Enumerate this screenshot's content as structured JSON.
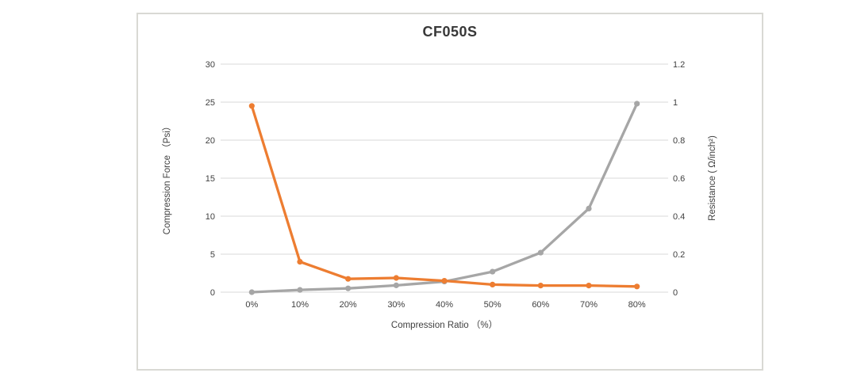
{
  "chart_data": {
    "type": "line",
    "title": "CF050S",
    "categories": [
      "0%",
      "10%",
      "20%",
      "30%",
      "40%",
      "50%",
      "60%",
      "70%",
      "80%"
    ],
    "x_axis": {
      "label": "Compression Ratio （%）"
    },
    "left_axis": {
      "label": "Compression Force （Psi）",
      "ticks": [
        "0",
        "5",
        "10",
        "15",
        "20",
        "25",
        "30"
      ],
      "range": [
        0,
        30
      ]
    },
    "right_axis": {
      "label": "Resistance ( Ω/inch²)",
      "ticks": [
        "0",
        "0.2",
        "0.4",
        "0.6",
        "0.8",
        "1",
        "1.2"
      ],
      "range": [
        0,
        1.2
      ]
    },
    "series": [
      {
        "name": "Compression Force",
        "axis": "left",
        "color": "#A6A6A6",
        "values": [
          0,
          0.3,
          0.5,
          0.9,
          1.4,
          2.7,
          5.2,
          11,
          24.8
        ]
      },
      {
        "name": "Resistance",
        "axis": "right",
        "color": "#ED7D31",
        "values": [
          0.98,
          0.16,
          0.07,
          0.075,
          0.06,
          0.04,
          0.035,
          0.035,
          0.03
        ]
      }
    ],
    "grid": "horizontal",
    "legend": "none",
    "gridline_color": "#D9D9D9"
  }
}
